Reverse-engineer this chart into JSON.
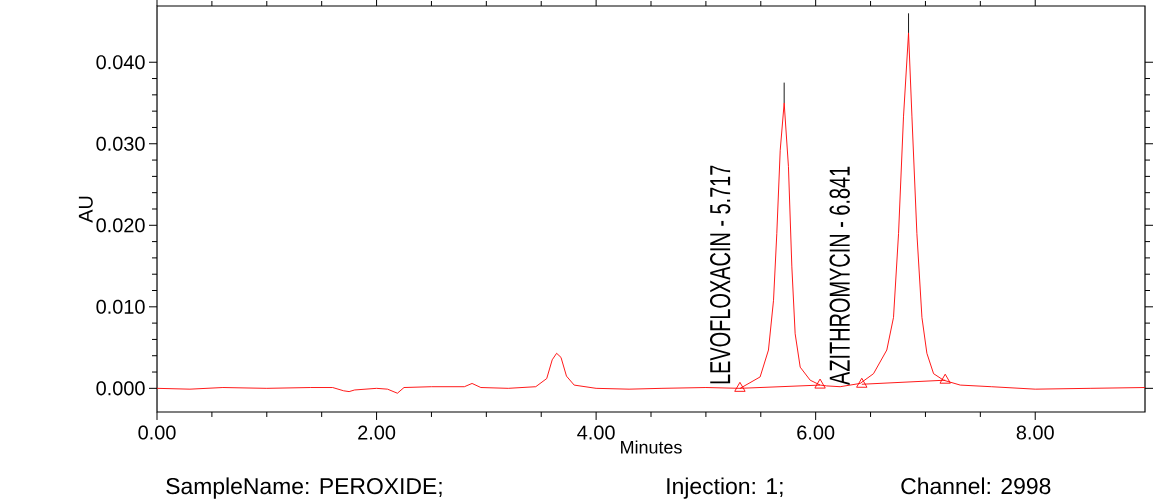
{
  "chart_data": {
    "type": "line",
    "xlabel": "Minutes",
    "ylabel": "AU",
    "xlim": [
      0,
      9
    ],
    "ylim": [
      -0.0029,
      0.0469
    ],
    "xticks": [
      {
        "value": 0,
        "label": "0.00"
      },
      {
        "value": 2,
        "label": "2.00"
      },
      {
        "value": 4,
        "label": "4.00"
      },
      {
        "value": 6,
        "label": "6.00"
      },
      {
        "value": 8,
        "label": "8.00"
      }
    ],
    "yticks": [
      {
        "value": 0,
        "label": "0.000"
      },
      {
        "value": 0.01,
        "label": "0.010"
      },
      {
        "value": 0.02,
        "label": "0.020"
      },
      {
        "value": 0.03,
        "label": "0.030"
      },
      {
        "value": 0.04,
        "label": "0.040"
      }
    ],
    "series": [
      {
        "type": "line",
        "color": "#ff0000",
        "x": [
          0,
          0.3,
          0.6,
          1.0,
          1.4,
          1.6,
          1.7,
          1.75,
          1.8,
          2.0,
          2.1,
          2.19,
          2.25,
          2.5,
          2.6,
          2.8,
          2.87,
          2.95,
          3.2,
          3.45,
          3.55,
          3.6,
          3.64,
          3.68,
          3.73,
          3.8,
          4.0,
          4.3,
          4.6,
          5.0,
          5.312,
          5.494,
          5.57,
          5.616,
          5.646,
          5.677,
          5.713,
          5.752,
          5.783,
          5.813,
          5.859,
          5.95,
          6.041,
          6.1,
          6.223,
          6.405,
          6.527,
          6.648,
          6.709,
          6.755,
          6.8,
          6.846,
          6.877,
          6.922,
          6.968,
          7.013,
          7.074,
          7.165,
          7.317,
          7.6,
          8.0,
          8.5,
          9.0
        ],
        "values": [
          0,
          -0.0001,
          0.0001,
          0,
          0.0001,
          0.0001,
          -0.0003,
          -0.0004,
          -0.0002,
          0,
          -0.0001,
          -0.0006,
          0.0001,
          0.0002,
          0.0002,
          0.0002,
          0.0006,
          0.0001,
          0,
          0.0002,
          0.0012,
          0.0035,
          0.0043,
          0.0038,
          0.0015,
          0.0004,
          0,
          -0.0001,
          0,
          0.0001,
          0,
          0.0014,
          0.0047,
          0.0108,
          0.019,
          0.0292,
          0.035,
          0.0272,
          0.0149,
          0.0067,
          0.0026,
          0.001,
          0.0004,
          0.0003,
          0.0002,
          0.0006,
          0.0018,
          0.0047,
          0.0087,
          0.019,
          0.0333,
          0.0436,
          0.0333,
          0.019,
          0.0087,
          0.0043,
          0.0018,
          0.001,
          0.0004,
          0.0002,
          -0.0001,
          0,
          0.0001
        ]
      },
      {
        "type": "line",
        "color": "#ff0000",
        "marker": "triangle",
        "x": [
          5.31,
          6.04,
          6.23,
          6.42,
          7.18
        ],
        "values": [
          0,
          0.0004,
          null,
          0.0005,
          0.001
        ]
      },
      {
        "type": "line",
        "color": "#000000",
        "x": [
          5.713,
          5.713,
          5.78,
          6.846,
          6.846
        ],
        "values": [
          0.035,
          0.0375,
          null,
          0.0436,
          0.046
        ]
      }
    ],
    "annotations": [
      "LEVOFLOXACIN - 5.717",
      "AZITHROMYCIN - 6.841",
      "SampleName: PEROXIDE;",
      "Injection: 1;",
      "Channel: 2998"
    ]
  }
}
